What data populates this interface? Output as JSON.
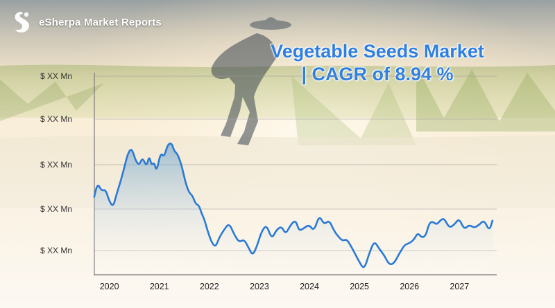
{
  "brand": {
    "name": "eSherpa Market Reports",
    "icon": "esherpa-logo-icon"
  },
  "headline": {
    "line1": "Vegetable Seeds Market",
    "line2": "| CAGR of 8.94 %"
  },
  "colors": {
    "headline": "#2f7fde",
    "line": "#2a7ad5",
    "area": "#6fa6cf",
    "sky": "#f6d9a6",
    "grass": "#a8b94e"
  },
  "chart_data": {
    "type": "area",
    "title": "",
    "xlabel": "",
    "ylabel": "",
    "y_tick_labels": [
      "$ XX Mn",
      "$ XX Mn",
      "$ XX Mn",
      "$ XX Mn",
      "$ XX Mn"
    ],
    "x_tick_labels": [
      "2020",
      "2021",
      "2022",
      "2023",
      "2024",
      "2025",
      "2026",
      "2027"
    ],
    "xlim": [
      2019.7,
      2027.8
    ],
    "ylim": [
      0,
      5
    ],
    "grid": true,
    "legend": "none",
    "series": [
      {
        "x": [
          2019.75,
          2019.82,
          2019.9,
          2019.98,
          2020.05,
          2020.13,
          2020.2,
          2020.28,
          2020.35,
          2020.42,
          2020.5,
          2020.58,
          2020.65,
          2020.72,
          2020.8,
          2020.85,
          2020.9,
          2020.95,
          2021.0,
          2021.08,
          2021.15,
          2021.22,
          2021.3,
          2021.35,
          2021.42,
          2021.5,
          2021.58,
          2021.65,
          2021.72,
          2021.78,
          2021.85,
          2021.9,
          2021.96,
          2022.02,
          2022.1,
          2022.18,
          2022.25,
          2022.35,
          2022.45,
          2022.55,
          2022.65,
          2022.75,
          2022.85,
          2022.92,
          2023.0,
          2023.1,
          2023.2,
          2023.3,
          2023.4,
          2023.5,
          2023.58,
          2023.68,
          2023.78,
          2023.85,
          2023.95,
          2024.05,
          2024.15,
          2024.25,
          2024.35,
          2024.45,
          2024.55,
          2024.65,
          2024.72,
          2024.8,
          2024.88,
          2024.95,
          2025.05,
          2025.15,
          2025.25,
          2025.35,
          2025.45,
          2025.55,
          2025.65,
          2025.75,
          2025.85,
          2025.95,
          2026.0,
          2026.08,
          2026.15,
          2026.22,
          2026.3,
          2026.38,
          2026.45,
          2026.52,
          2026.6,
          2026.68,
          2026.75,
          2026.85,
          2026.95,
          2027.05,
          2027.15,
          2027.25,
          2027.35,
          2027.45,
          2027.55,
          2027.65,
          2027.72
        ],
        "values": [
          2.3,
          2.75,
          2.5,
          2.55,
          2.2,
          2.0,
          2.4,
          2.8,
          3.2,
          3.65,
          3.85,
          3.45,
          3.3,
          3.55,
          3.25,
          3.6,
          3.3,
          3.4,
          3.1,
          3.7,
          3.55,
          3.95,
          4.0,
          3.75,
          3.65,
          3.3,
          2.75,
          2.45,
          2.35,
          2.1,
          2.05,
          1.8,
          1.6,
          1.25,
          0.9,
          0.75,
          1.05,
          1.3,
          1.5,
          1.15,
          0.9,
          1.0,
          0.7,
          0.5,
          0.75,
          1.25,
          1.45,
          1.0,
          1.3,
          1.4,
          1.15,
          1.45,
          1.6,
          1.25,
          1.35,
          1.45,
          1.25,
          1.75,
          1.45,
          1.6,
          1.25,
          1.05,
          0.95,
          1.0,
          0.8,
          0.6,
          0.3,
          0.05,
          0.55,
          0.95,
          0.7,
          0.5,
          0.2,
          0.25,
          0.55,
          0.8,
          0.85,
          0.9,
          1.0,
          1.2,
          1.05,
          1.1,
          1.5,
          1.55,
          1.45,
          1.6,
          1.65,
          1.35,
          1.45,
          1.65,
          1.3,
          1.45,
          1.35,
          1.45,
          1.6,
          1.25,
          1.6
        ]
      }
    ]
  }
}
